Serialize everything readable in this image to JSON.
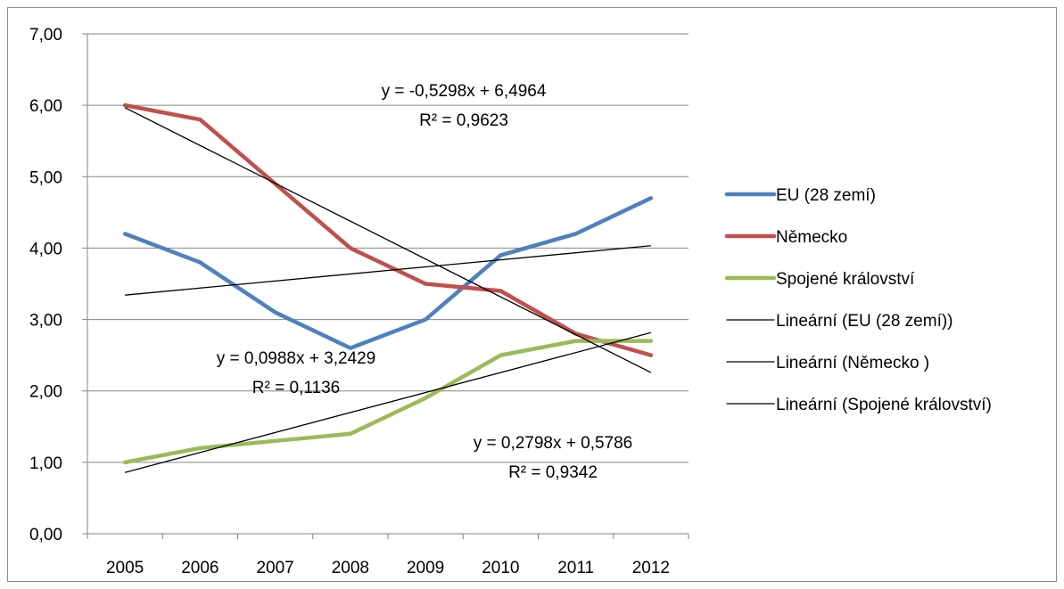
{
  "chart_data": {
    "type": "line",
    "title": "",
    "xlabel": "",
    "ylabel": "",
    "categories": [
      "2005",
      "2006",
      "2007",
      "2008",
      "2009",
      "2010",
      "2011",
      "2012"
    ],
    "ylim": [
      0,
      7
    ],
    "y_ticks": [
      "0,00",
      "1,00",
      "2,00",
      "3,00",
      "4,00",
      "5,00",
      "6,00",
      "7,00"
    ],
    "grid": "horizontal",
    "legend_position": "right",
    "series": [
      {
        "name": "EU (28 zemí)",
        "color": "#4f81bd",
        "values": [
          4.2,
          3.8,
          3.1,
          2.6,
          3.0,
          3.9,
          4.2,
          4.7
        ]
      },
      {
        "name": "Německo",
        "color": "#c0504d",
        "values": [
          6.0,
          5.8,
          4.9,
          4.0,
          3.5,
          3.4,
          2.8,
          2.5
        ]
      },
      {
        "name": "Spojené království",
        "color": "#9bbb59",
        "values": [
          1.0,
          1.2,
          1.3,
          1.4,
          1.9,
          2.5,
          2.7,
          2.7
        ]
      }
    ],
    "trendlines": [
      {
        "name": "Lineární (EU (28 zemí))",
        "color": "#000000",
        "slope": 0.0988,
        "intercept": 3.2429,
        "equation": "y = 0,0988x + 3,2429",
        "r2": "R² = 0,1136"
      },
      {
        "name": "Lineární (Německo )",
        "color": "#000000",
        "slope": -0.5298,
        "intercept": 6.4964,
        "equation": "y = -0,5298x + 6,4964",
        "r2": "R² = 0,9623"
      },
      {
        "name": "Lineární (Spojené království)",
        "color": "#000000",
        "slope": 0.2798,
        "intercept": 0.5786,
        "equation": "y = 0,2798x + 0,5786",
        "r2": "R² = 0,9342"
      }
    ]
  }
}
